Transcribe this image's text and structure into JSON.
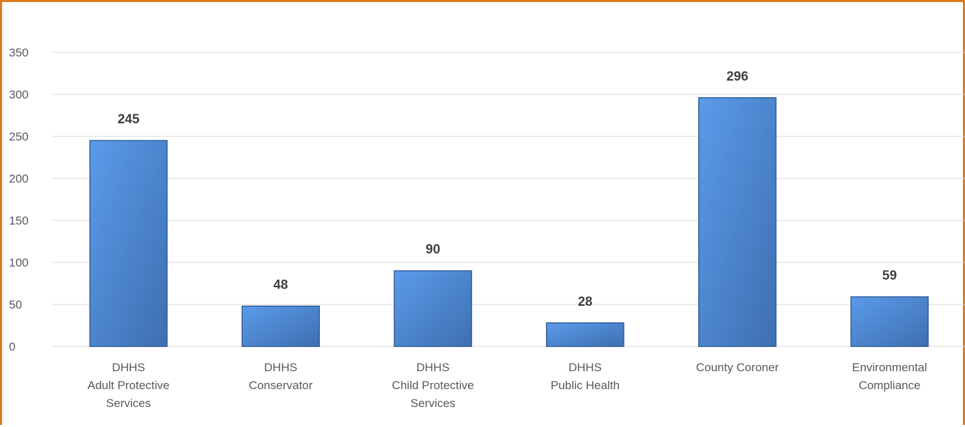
{
  "chart_data": {
    "type": "bar",
    "categories": [
      [
        "DHHS",
        "Adult Protective",
        "Services"
      ],
      [
        "DHHS",
        "Conservator"
      ],
      [
        "DHHS",
        "Child Protective",
        "Services"
      ],
      [
        "DHHS",
        "Public Health"
      ],
      [
        "County Coroner"
      ],
      [
        "Environmental",
        "Compliance"
      ]
    ],
    "values": [
      245,
      48,
      90,
      28,
      296,
      59
    ],
    "data_labels": [
      "245",
      "48",
      "90",
      "28",
      "296",
      "59"
    ],
    "yticks": [
      "0",
      "50",
      "100",
      "150",
      "200",
      "250",
      "300",
      "350"
    ],
    "ylim": [
      0,
      350
    ],
    "grid": true,
    "legend": "none",
    "colors": {
      "bar_light": "#5B9BEA",
      "bar_dark": "#3E6FB0",
      "bar_edge": "#2F5C99",
      "frame": "#E07A1F"
    }
  }
}
